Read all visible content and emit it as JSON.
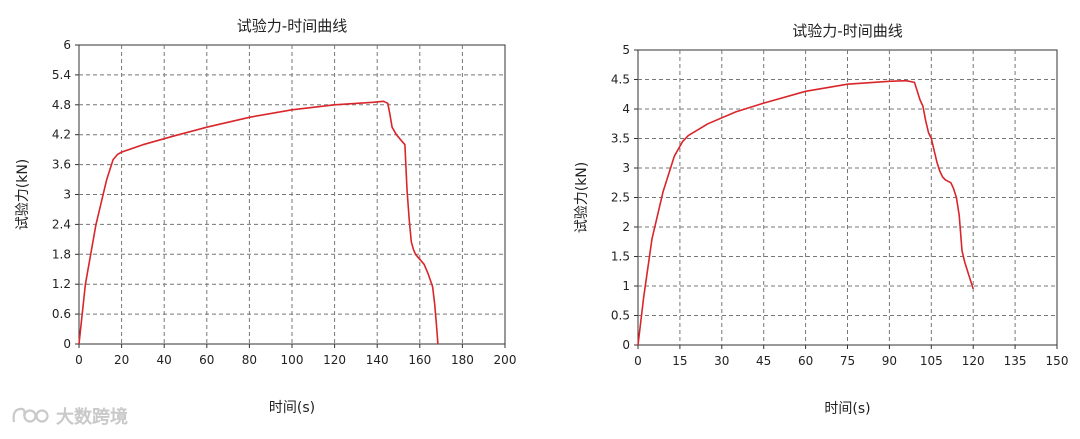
{
  "watermark": {
    "text": "大数跨境"
  },
  "chart_data": [
    {
      "type": "line",
      "title": "试验力-时间曲线",
      "xlabel": "时间(s)",
      "ylabel": "试验力(kN)",
      "xlim": [
        0,
        200
      ],
      "ylim": [
        0,
        6
      ],
      "xticks": [
        0,
        20,
        40,
        60,
        80,
        100,
        120,
        140,
        160,
        180,
        200
      ],
      "yticks": [
        0,
        0.6,
        1.2,
        1.8,
        2.4,
        3,
        3.6,
        4.2,
        4.8,
        5.4,
        6
      ],
      "ytick_labels": [
        "0",
        "0.6",
        "1.2",
        "1.8",
        "2.4",
        "3",
        "3.6",
        "4.2",
        "4.8",
        "5.4",
        "6"
      ],
      "grid": true,
      "color": "#d9262b",
      "series": [
        {
          "x": [
            0,
            3,
            8,
            13,
            16,
            18,
            20,
            30,
            45,
            60,
            80,
            100,
            120,
            138,
            143,
            145,
            146,
            147,
            149,
            151,
            153,
            154,
            155,
            156,
            157,
            158,
            160,
            162,
            164,
            166,
            167,
            168,
            168.5
          ],
          "y": [
            0,
            1.2,
            2.4,
            3.3,
            3.7,
            3.8,
            3.85,
            4.0,
            4.18,
            4.35,
            4.55,
            4.7,
            4.8,
            4.85,
            4.87,
            4.83,
            4.6,
            4.35,
            4.2,
            4.1,
            4.0,
            3.1,
            2.5,
            2.05,
            1.9,
            1.8,
            1.7,
            1.6,
            1.4,
            1.15,
            0.8,
            0.3,
            0
          ]
        }
      ]
    },
    {
      "type": "line",
      "title": "试验力-时间曲线",
      "xlabel": "时间(s)",
      "ylabel": "试验力(kN)",
      "xlim": [
        0,
        150
      ],
      "ylim": [
        0,
        5
      ],
      "xticks": [
        0,
        15,
        30,
        45,
        60,
        75,
        90,
        105,
        120,
        135,
        150
      ],
      "yticks": [
        0,
        0.5,
        1,
        1.5,
        2,
        2.5,
        3,
        3.5,
        4,
        4.5,
        5
      ],
      "ytick_labels": [
        "0",
        "0.5",
        "1",
        "1.5",
        "2",
        "2.5",
        "3",
        "3.5",
        "4",
        "4.5",
        "5"
      ],
      "grid": true,
      "color": "#d9262b",
      "series": [
        {
          "x": [
            0,
            2,
            5,
            9,
            13,
            16,
            18,
            25,
            35,
            45,
            60,
            75,
            90,
            96,
            99,
            100,
            101,
            102,
            103,
            104,
            105,
            106,
            107,
            108,
            109,
            110,
            112,
            113,
            114,
            115,
            116,
            117,
            118,
            119,
            120
          ],
          "y": [
            0,
            0.8,
            1.8,
            2.6,
            3.2,
            3.45,
            3.55,
            3.75,
            3.95,
            4.1,
            4.3,
            4.42,
            4.47,
            4.48,
            4.45,
            4.3,
            4.15,
            4.05,
            3.8,
            3.6,
            3.5,
            3.3,
            3.1,
            2.95,
            2.85,
            2.8,
            2.75,
            2.65,
            2.5,
            2.2,
            1.6,
            1.4,
            1.25,
            1.1,
            0.95
          ]
        }
      ]
    }
  ]
}
